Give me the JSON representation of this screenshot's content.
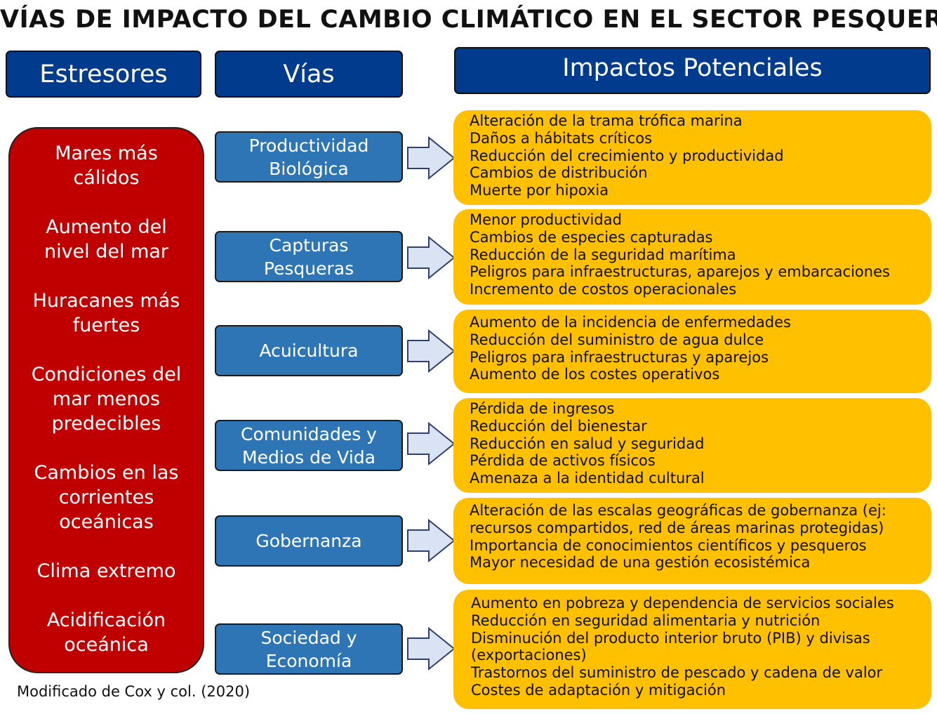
{
  "title": "VÍAS DE IMPACTO DEL CAMBIO CLIMÁTICO EN EL SECTOR PESQUERO",
  "headers": {
    "stressors": "Estresores",
    "vias": "Vías",
    "impacts": "Impactos Potenciales"
  },
  "stressors": [
    {
      "line1": "Mares más",
      "line2": "cálidos"
    },
    {
      "line1": "Aumento del",
      "line2": "nivel del mar"
    },
    {
      "line1": "Huracanes más",
      "line2": "fuertes"
    },
    {
      "line1": "Condiciones del",
      "line2": "mar menos",
      "line3": "predecibles"
    },
    {
      "line1": "Cambios en las",
      "line2": "corrientes",
      "line3": "oceánicas"
    },
    {
      "line1": "Clima extremo"
    },
    {
      "line1": "Acidificación",
      "line2": "oceánica"
    }
  ],
  "vias": [
    {
      "line1": "Productividad",
      "line2": "Biológica"
    },
    {
      "line1": "Capturas",
      "line2": "Pesqueras"
    },
    {
      "line1": "Acuicultura"
    },
    {
      "line1": "Comunidades y",
      "line2": "Medios de Vida"
    },
    {
      "line1": "Gobernanza"
    },
    {
      "line1": "Sociedad y",
      "line2": "Economía"
    }
  ],
  "impacts": [
    [
      "Alteración de la trama trófica marina",
      "Daños a hábitats críticos",
      "Reducción del crecimiento y productividad",
      "Cambios de distribución",
      "Muerte por hipoxia"
    ],
    [
      "Menor productividad",
      "Cambios de especies capturadas",
      "Reducción de la seguridad marítima",
      "Peligros para infraestructuras, aparejos y embarcaciones",
      "Incremento de costos operacionales"
    ],
    [
      "Aumento de la incidencia de enfermedades",
      "Reducción del suministro de agua dulce",
      "Peligros para infraestructuras y aparejos",
      "Aumento de los costes operativos"
    ],
    [
      "Pérdida de ingresos",
      "Reducción del bienestar",
      "Reducción en salud y seguridad",
      "Pérdida de activos físicos",
      "Amenaza a la identidad cultural"
    ],
    [
      "Alteración de las escalas geográficas de gobernanza (ej:",
      "recursos compartidos, red de áreas marinas protegidas)",
      "Importancia de conocimientos científicos y pesqueros",
      "Mayor necesidad de una gestión ecosistémica"
    ],
    [
      "Aumento en pobreza y dependencia de servicios sociales",
      "Reducción en seguridad alimentaria y nutrición",
      "Disminución del producto interior bruto (PIB) y divisas",
      "(exportaciones)",
      "Trastornos del suministro de pescado y cadena de valor",
      "Costes de adaptación y mitigación"
    ]
  ],
  "footnote": "Modificado de Cox y col. (2020)",
  "colors": {
    "header_blue": "#003b8e",
    "stressor_red": "#c00000",
    "via_blue": "#2e75b6",
    "impact_yellow": "#ffc000",
    "arrow_fill": "#dae3f3",
    "arrow_stroke": "#2f3f6f"
  }
}
